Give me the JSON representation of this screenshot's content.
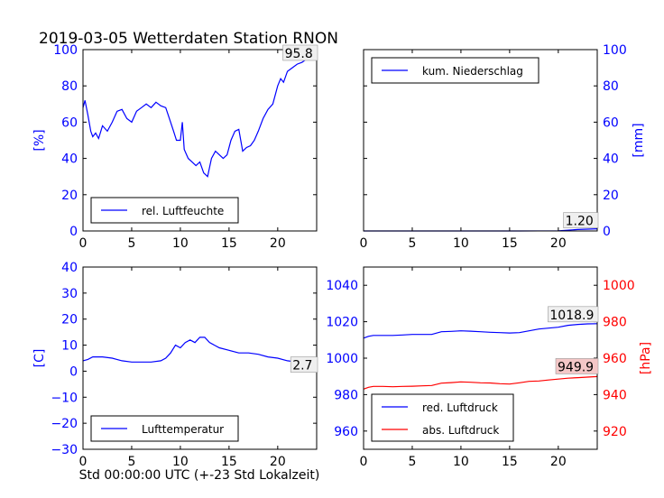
{
  "figure": {
    "title": "2019-03-05 Wetterdaten Station RNON",
    "xlabel": "Std 00:00:00 UTC (+-23 Std Lokalzeit)"
  },
  "colors": {
    "blue": "#0000ff",
    "red": "#ff0000",
    "black": "#000000"
  },
  "chart_data": [
    {
      "type": "line",
      "id": "humidity",
      "xlim": [
        0,
        24
      ],
      "ylim": [
        0,
        100
      ],
      "xticks": [
        "0",
        "5",
        "10",
        "15",
        "20"
      ],
      "yticks": [
        "0",
        "20",
        "40",
        "60",
        "80",
        "100"
      ],
      "ylabel": "[%]",
      "ylabel_side": "left",
      "legend_location": "lower-left",
      "series": [
        {
          "name": "rel. Luftfeuchte",
          "color": "#0000ff",
          "x": [
            0,
            0.2,
            0.5,
            0.8,
            1,
            1.3,
            1.6,
            2,
            2.5,
            3,
            3.5,
            4,
            4.5,
            5,
            5.5,
            6,
            6.5,
            7,
            7.5,
            8,
            8.5,
            9,
            9.3,
            9.6,
            10,
            10.2,
            10.4,
            10.8,
            11.2,
            11.6,
            12,
            12.4,
            12.8,
            13.2,
            13.6,
            14,
            14.4,
            14.8,
            15.2,
            15.6,
            16,
            16.4,
            16.8,
            17.2,
            17.6,
            18,
            18.5,
            19,
            19.5,
            20,
            20.3,
            20.6,
            21,
            21.5,
            22,
            22.5,
            23,
            23.5,
            24
          ],
          "y": [
            68,
            72,
            64,
            55,
            52,
            54,
            51,
            58,
            55,
            60,
            66,
            67,
            62,
            60,
            66,
            68,
            70,
            68,
            71,
            69,
            68,
            60,
            55,
            50,
            50,
            60,
            45,
            40,
            38,
            36,
            38,
            32,
            30,
            40,
            44,
            42,
            40,
            42,
            50,
            55,
            56,
            44,
            46,
            47,
            50,
            55,
            62,
            67,
            70,
            80,
            84,
            82,
            88,
            90,
            92,
            93,
            95,
            95.5,
            95.8
          ]
        }
      ],
      "annotation": "95.8"
    },
    {
      "type": "line",
      "id": "precipitation",
      "xlim": [
        0,
        24
      ],
      "ylim": [
        0,
        100
      ],
      "xticks": [
        "0",
        "5",
        "10",
        "15",
        "20"
      ],
      "yticks": [
        "0",
        "20",
        "40",
        "60",
        "80",
        "100"
      ],
      "ylabel": "[mm]",
      "ylabel_side": "right",
      "legend_location": "upper-left",
      "series": [
        {
          "name": "kum. Niederschlag",
          "color": "#0000ff",
          "x": [
            0,
            4,
            8,
            12,
            16,
            20,
            22,
            24
          ],
          "y": [
            0,
            0,
            0,
            0,
            0,
            0.1,
            0.8,
            1.2
          ]
        }
      ],
      "annotation": "1.20"
    },
    {
      "type": "line",
      "id": "temperature",
      "xlim": [
        0,
        24
      ],
      "ylim": [
        -30,
        40
      ],
      "xticks": [
        "0",
        "5",
        "10",
        "15",
        "20"
      ],
      "yticks": [
        "−30",
        "−20",
        "−10",
        "0",
        "10",
        "20",
        "30",
        "40"
      ],
      "ylabel": "[C]",
      "ylabel_side": "left",
      "legend_location": "lower-left",
      "series": [
        {
          "name": "Lufttemperatur",
          "color": "#0000ff",
          "x": [
            0,
            0.5,
            1,
            2,
            3,
            4,
            5,
            6,
            7,
            8,
            8.5,
            9,
            9.5,
            10,
            10.5,
            11,
            11.5,
            12,
            12.5,
            13,
            13.5,
            14,
            15,
            16,
            17,
            18,
            19,
            20,
            21,
            22,
            23,
            24
          ],
          "y": [
            4,
            4.5,
            5.5,
            5.5,
            5,
            4,
            3.5,
            3.5,
            3.5,
            4,
            5,
            7,
            10,
            9,
            11,
            12,
            11,
            13,
            13,
            11,
            10,
            9,
            8,
            7,
            7,
            6.5,
            5.5,
            5,
            4,
            3.5,
            3,
            2.7
          ]
        }
      ],
      "annotation": "2.7"
    },
    {
      "type": "line",
      "id": "pressure",
      "xlim": [
        0,
        24
      ],
      "ylim": [
        950,
        1050
      ],
      "y2lim": [
        910,
        1010
      ],
      "xticks": [
        "0",
        "5",
        "10",
        "15",
        "20"
      ],
      "yticks": [
        "960",
        "980",
        "1000",
        "1020",
        "1040"
      ],
      "y2ticks": [
        "920",
        "940",
        "960",
        "980",
        "1000"
      ],
      "y2label": "[hPa]",
      "legend_location": "lower-left",
      "series": [
        {
          "name": "red. Luftdruck",
          "color": "#0000ff",
          "axis": "left",
          "x": [
            0,
            0.5,
            1,
            2,
            3,
            4,
            5,
            6,
            7,
            8,
            9,
            10,
            11,
            12,
            13,
            14,
            15,
            16,
            17,
            18,
            19,
            20,
            21,
            22,
            23,
            24
          ],
          "y": [
            1011,
            1012,
            1012.5,
            1012.5,
            1012.5,
            1012.7,
            1013,
            1013,
            1013,
            1014.5,
            1014.7,
            1015,
            1014.8,
            1014.5,
            1014.2,
            1014,
            1013.8,
            1014,
            1015,
            1016,
            1016.5,
            1017,
            1018,
            1018.5,
            1018.8,
            1018.9
          ]
        },
        {
          "name": "abs. Luftdruck",
          "color": "#ff0000",
          "axis": "right",
          "x": [
            0,
            0.5,
            1,
            2,
            3,
            4,
            5,
            6,
            7,
            8,
            9,
            10,
            11,
            12,
            13,
            14,
            15,
            16,
            17,
            18,
            19,
            20,
            21,
            22,
            23,
            24
          ],
          "y": [
            943,
            944,
            944.5,
            944.5,
            944.3,
            944.5,
            944.6,
            944.8,
            945,
            946.3,
            946.6,
            947,
            946.8,
            946.5,
            946.4,
            946,
            945.8,
            946.5,
            947.3,
            947.5,
            948,
            948.5,
            949,
            949.3,
            949.6,
            949.9
          ]
        }
      ],
      "annotations": [
        "1018.9",
        "949.9"
      ]
    }
  ]
}
